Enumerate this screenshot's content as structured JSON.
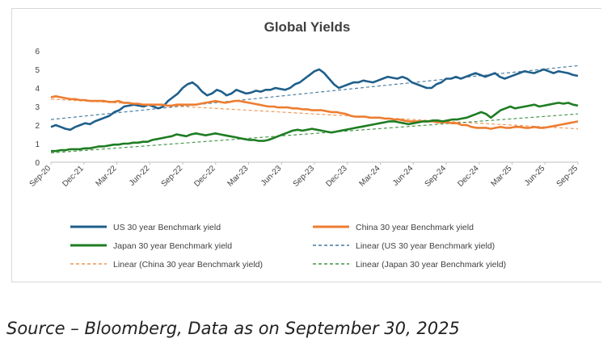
{
  "source_note": "Source – Bloomberg, Data as on September 30, 2025",
  "colors": {
    "us": "#1f5f8b",
    "china": "#ed7d31",
    "japan": "#1e7d22",
    "axis": "#bfbfbf",
    "text": "#404040"
  },
  "chart_data": {
    "type": "line",
    "title": "Global Yields",
    "xlabel": "",
    "ylabel": "",
    "ylim": [
      0,
      6
    ],
    "yticks": [
      0,
      1,
      2,
      3,
      4,
      5,
      6
    ],
    "xticks": [
      "Sep-20",
      "Dec-21",
      "Mar-22",
      "Jun-22",
      "Sep-22",
      "Dec-22",
      "Mar-23",
      "Jun-23",
      "Sep-23",
      "Dec-23",
      "Mar-24",
      "Jun-24",
      "Sep-24",
      "Dec-24",
      "Mar-25",
      "Jun-25",
      "Sep-25"
    ],
    "grid": false,
    "legend_placement": "bottom",
    "series": [
      {
        "name": "US 30 year Benchmark yield",
        "color_key": "us",
        "values": [
          1.9,
          2.0,
          1.9,
          1.8,
          1.75,
          1.9,
          2.0,
          2.1,
          2.05,
          2.2,
          2.3,
          2.4,
          2.5,
          2.7,
          2.8,
          3.0,
          3.05,
          3.1,
          3.05,
          3.0,
          3.1,
          3.0,
          2.9,
          3.0,
          3.3,
          3.5,
          3.7,
          4.0,
          4.2,
          4.3,
          4.1,
          3.8,
          3.6,
          3.7,
          3.9,
          3.8,
          3.6,
          3.7,
          3.9,
          3.8,
          3.7,
          3.75,
          3.85,
          3.8,
          3.9,
          3.9,
          4.0,
          3.95,
          3.9,
          4.0,
          4.2,
          4.3,
          4.5,
          4.7,
          4.9,
          5.0,
          4.8,
          4.5,
          4.2,
          4.0,
          4.1,
          4.2,
          4.3,
          4.3,
          4.4,
          4.35,
          4.3,
          4.4,
          4.5,
          4.6,
          4.55,
          4.5,
          4.6,
          4.5,
          4.3,
          4.2,
          4.1,
          4.0,
          4.0,
          4.2,
          4.3,
          4.5,
          4.5,
          4.6,
          4.5,
          4.6,
          4.7,
          4.8,
          4.7,
          4.6,
          4.7,
          4.8,
          4.6,
          4.5,
          4.6,
          4.7,
          4.8,
          4.9,
          4.85,
          4.8,
          4.9,
          5.0,
          4.9,
          4.8,
          4.9,
          4.85,
          4.8,
          4.7,
          4.65
        ]
      },
      {
        "name": "China 30 year Benchmark yield",
        "color_key": "china",
        "values": [
          3.5,
          3.55,
          3.5,
          3.45,
          3.4,
          3.4,
          3.35,
          3.35,
          3.3,
          3.3,
          3.3,
          3.3,
          3.25,
          3.25,
          3.3,
          3.2,
          3.2,
          3.15,
          3.15,
          3.1,
          3.1,
          3.1,
          3.1,
          3.1,
          3.05,
          3.05,
          3.1,
          3.1,
          3.1,
          3.1,
          3.1,
          3.15,
          3.2,
          3.25,
          3.3,
          3.25,
          3.2,
          3.25,
          3.3,
          3.3,
          3.25,
          3.2,
          3.15,
          3.1,
          3.05,
          3.0,
          3.0,
          2.95,
          2.95,
          2.95,
          2.9,
          2.9,
          2.85,
          2.85,
          2.8,
          2.8,
          2.8,
          2.75,
          2.7,
          2.7,
          2.65,
          2.6,
          2.5,
          2.45,
          2.45,
          2.45,
          2.4,
          2.4,
          2.4,
          2.35,
          2.35,
          2.3,
          2.3,
          2.25,
          2.2,
          2.2,
          2.2,
          2.2,
          2.2,
          2.2,
          2.15,
          2.15,
          2.15,
          2.1,
          2.1,
          2.0,
          2.0,
          1.9,
          1.85,
          1.85,
          1.85,
          1.8,
          1.85,
          1.9,
          1.85,
          1.85,
          1.9,
          1.9,
          1.85,
          1.85,
          1.9,
          1.85,
          1.85,
          1.9,
          1.95,
          2.0,
          2.05,
          2.1,
          2.15,
          2.2
        ]
      },
      {
        "name": "Japan 30 year Benchmark yield",
        "color_key": "japan",
        "values": [
          0.6,
          0.6,
          0.65,
          0.65,
          0.7,
          0.7,
          0.7,
          0.75,
          0.75,
          0.8,
          0.85,
          0.85,
          0.9,
          0.95,
          0.95,
          1.0,
          1.0,
          1.05,
          1.05,
          1.1,
          1.1,
          1.2,
          1.25,
          1.3,
          1.35,
          1.4,
          1.5,
          1.45,
          1.4,
          1.5,
          1.55,
          1.5,
          1.45,
          1.5,
          1.55,
          1.5,
          1.45,
          1.4,
          1.35,
          1.3,
          1.25,
          1.2,
          1.2,
          1.15,
          1.15,
          1.2,
          1.3,
          1.4,
          1.5,
          1.6,
          1.7,
          1.75,
          1.7,
          1.75,
          1.8,
          1.75,
          1.7,
          1.65,
          1.6,
          1.65,
          1.7,
          1.75,
          1.8,
          1.85,
          1.9,
          1.95,
          2.0,
          2.05,
          2.1,
          2.15,
          2.2,
          2.2,
          2.15,
          2.1,
          2.05,
          2.1,
          2.15,
          2.2,
          2.2,
          2.25,
          2.25,
          2.2,
          2.25,
          2.3,
          2.3,
          2.35,
          2.4,
          2.5,
          2.6,
          2.7,
          2.6,
          2.4,
          2.6,
          2.8,
          2.9,
          3.0,
          2.9,
          2.95,
          3.0,
          3.05,
          3.1,
          3.0,
          3.05,
          3.1,
          3.15,
          3.2,
          3.15,
          3.2,
          3.1,
          3.05
        ]
      },
      {
        "name": "Linear (US 30 year Benchmark yield)",
        "color_key": "us",
        "trend": true,
        "values": [
          2.3,
          5.2
        ]
      },
      {
        "name": "Linear (China 30 year Benchmark yield)",
        "color_key": "china",
        "trend": true,
        "values": [
          3.4,
          1.8
        ]
      },
      {
        "name": "Linear (Japan 30 year Benchmark yield)",
        "color_key": "japan",
        "trend": true,
        "values": [
          0.5,
          2.6
        ]
      }
    ]
  }
}
